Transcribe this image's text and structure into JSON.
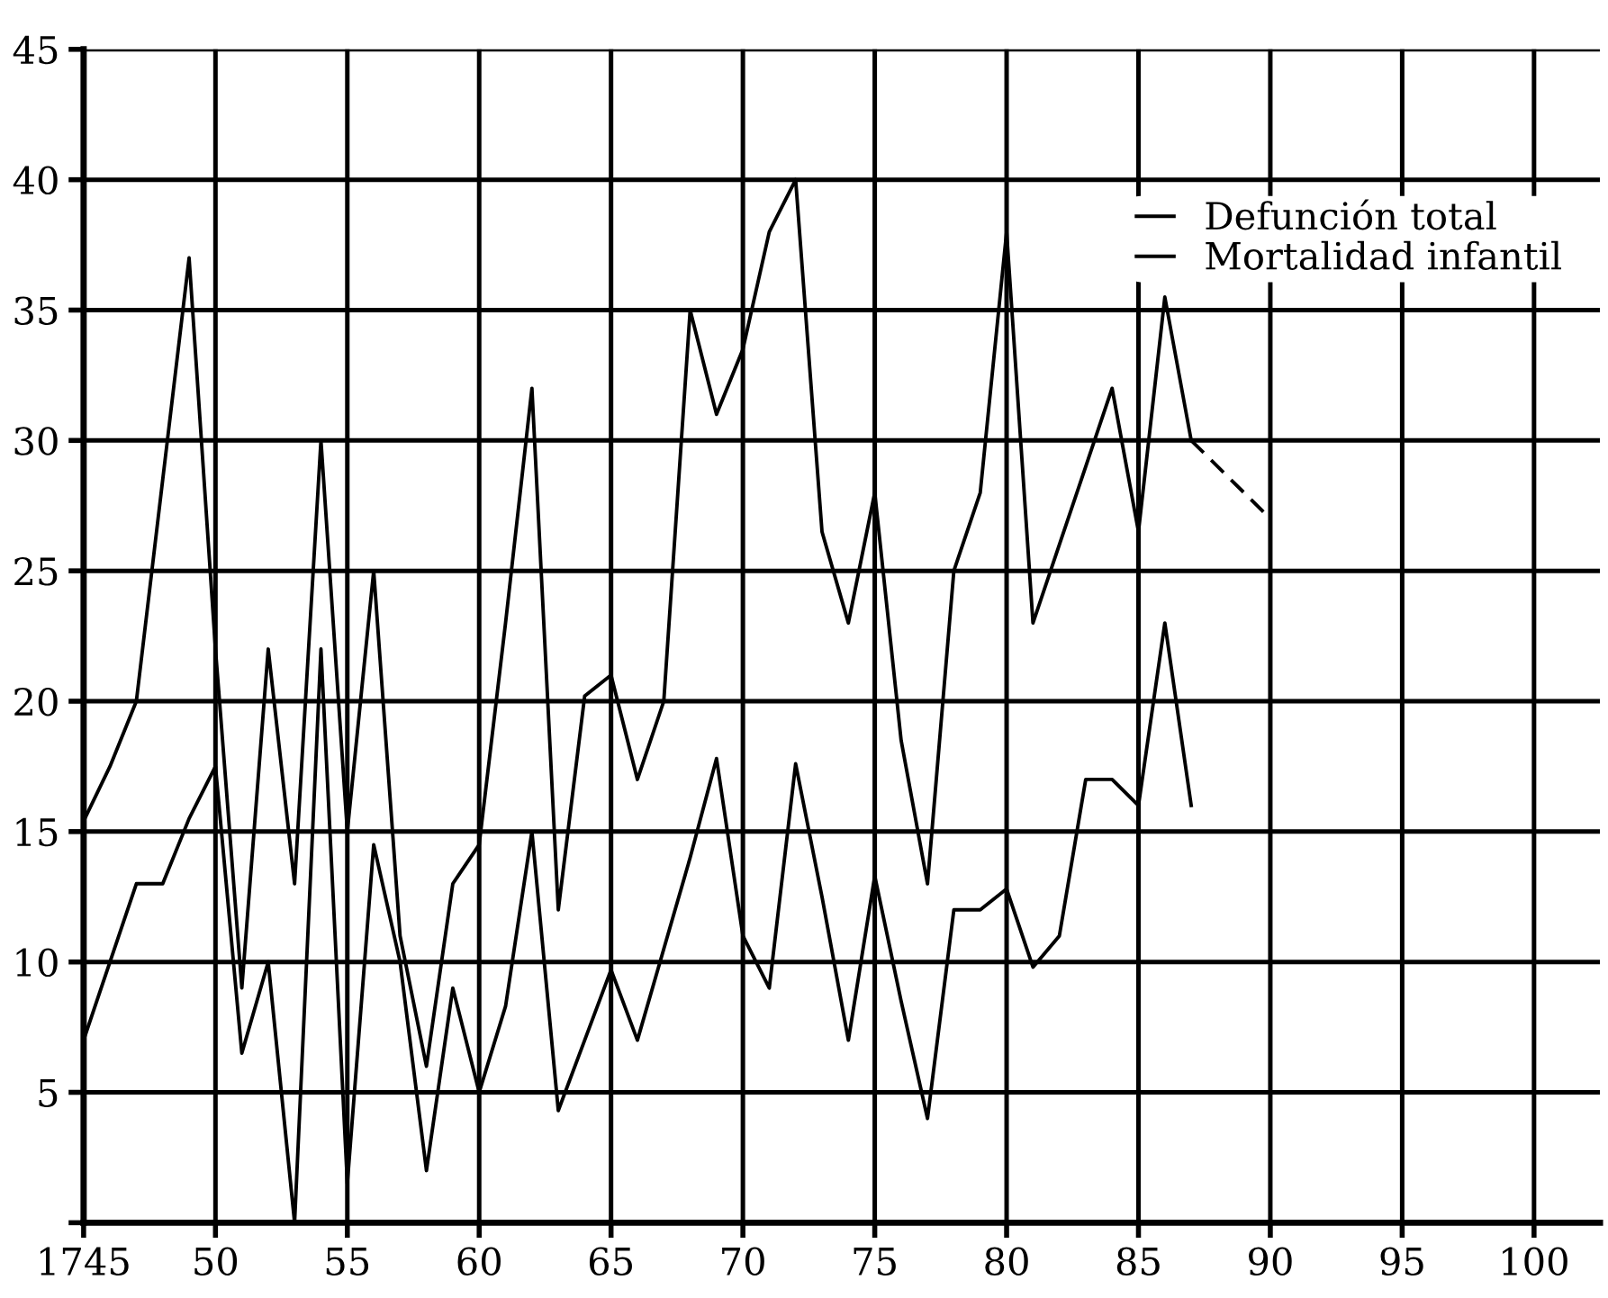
{
  "chart_data": {
    "type": "line",
    "categories": [
      "1745",
      null,
      null,
      null,
      null,
      "50",
      null,
      null,
      null,
      null,
      "55",
      null,
      null,
      null,
      null,
      "60",
      null,
      null,
      null,
      null,
      "65",
      null,
      null,
      null,
      null,
      "70",
      null,
      null,
      null,
      null,
      "75",
      null,
      null,
      null,
      null,
      "80",
      null,
      null,
      null,
      null,
      "85",
      null,
      null,
      null,
      null,
      "90",
      null,
      null,
      null,
      null,
      "95",
      null,
      null,
      null,
      null,
      "100",
      null,
      null
    ],
    "series": [
      {
        "name": "Defunción total",
        "color": "#000000",
        "line_style": "solid",
        "values": [
          15.4,
          17.5,
          20,
          28.5,
          37,
          22,
          9,
          22,
          13,
          30,
          15,
          25,
          11,
          6,
          13,
          14.5,
          23,
          32,
          12,
          20.2,
          21,
          17,
          20,
          35,
          31,
          33.5,
          38,
          40,
          26.5,
          23,
          28,
          18.5,
          13,
          25,
          28,
          38,
          23,
          26,
          29,
          32,
          26.5,
          35.5,
          30,
          null,
          null,
          null,
          null,
          null,
          null,
          null,
          null,
          null,
          null,
          null,
          null,
          null,
          null,
          null
        ]
      },
      {
        "name": "Mortalidad infantil",
        "color": "#000000",
        "line_style": "solid",
        "values": [
          7,
          10,
          13,
          13,
          15.5,
          17.5,
          6.5,
          10,
          0,
          22,
          1.5,
          14.5,
          10,
          2,
          9,
          5,
          8.3,
          15,
          4.3,
          7,
          9.7,
          7,
          10.5,
          14,
          17.8,
          11,
          9,
          17.6,
          12.5,
          7,
          13.3,
          8.5,
          4,
          12,
          12,
          12.8,
          9.8,
          11,
          17,
          17,
          16,
          23,
          16,
          null,
          null,
          null,
          null,
          null,
          null,
          null,
          null,
          null,
          null,
          null,
          null,
          null,
          null,
          null
        ]
      },
      {
        "color": "#000000",
        "line_style": "dashed",
        "values": [
          null,
          null,
          null,
          null,
          null,
          null,
          null,
          null,
          null,
          null,
          null,
          null,
          null,
          null,
          null,
          null,
          null,
          null,
          null,
          null,
          null,
          null,
          null,
          null,
          null,
          null,
          null,
          null,
          null,
          null,
          null,
          null,
          null,
          null,
          null,
          null,
          null,
          null,
          null,
          null,
          null,
          null,
          30,
          null,
          null,
          27,
          null,
          null,
          null,
          null,
          null,
          null,
          null,
          null,
          null,
          null,
          null,
          null
        ]
      }
    ],
    "ylim": [
      0,
      45
    ],
    "yticks": [
      {
        "value": 0,
        "label": null
      },
      5,
      10,
      15,
      20,
      25,
      30,
      35,
      40,
      45
    ],
    "grid": true,
    "legend": "top right",
    "marker": "none"
  }
}
